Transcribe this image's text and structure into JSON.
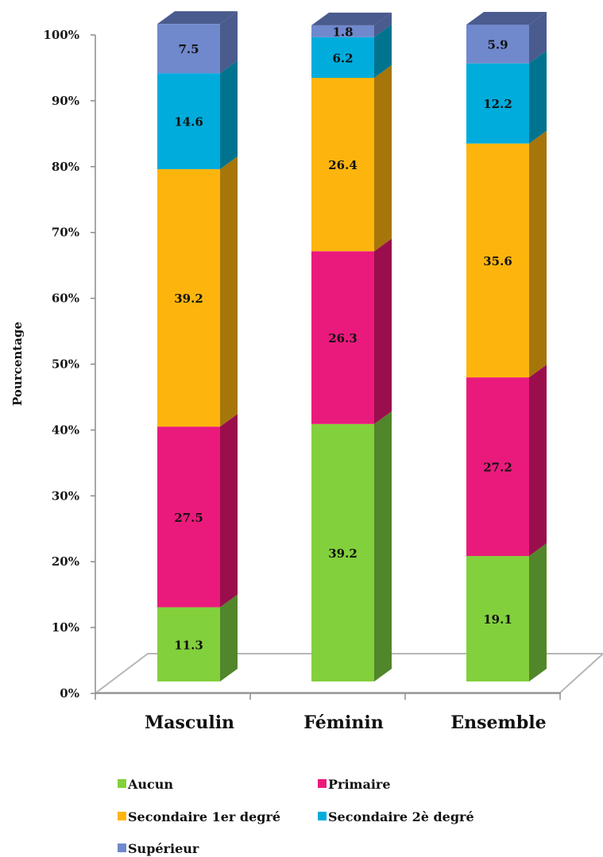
{
  "chart_data": {
    "type": "bar",
    "stacked": true,
    "percent": true,
    "three_d": true,
    "categories": [
      "Masculin",
      "Féminin",
      "Ensemble"
    ],
    "series": [
      {
        "name": "Aucun",
        "values": [
          11.3,
          39.2,
          19.1
        ],
        "color": "#82d03c",
        "side": "#52862a"
      },
      {
        "name": "Primaire",
        "values": [
          27.5,
          26.3,
          27.2
        ],
        "color": "#ea1a7c",
        "side": "#9a0e4e"
      },
      {
        "name": "Secondaire 1er degré",
        "values": [
          39.2,
          26.4,
          35.6
        ],
        "color": "#fdb50e",
        "side": "#a6760a"
      },
      {
        "name": "Secondaire 2è degré",
        "values": [
          14.6,
          6.2,
          12.2
        ],
        "color": "#00acdc",
        "side": "#00748f"
      },
      {
        "name": "Supérieur",
        "values": [
          7.5,
          1.8,
          5.9
        ],
        "color": "#7088cc",
        "side": "#4a5b8e"
      }
    ],
    "ylabel": "Pourcentage",
    "yticks": [
      "0%",
      "10%",
      "20%",
      "30%",
      "40%",
      "50%",
      "60%",
      "70%",
      "80%",
      "90%",
      "100%"
    ],
    "ylim": [
      0,
      100
    ],
    "legend_position": "bottom"
  }
}
